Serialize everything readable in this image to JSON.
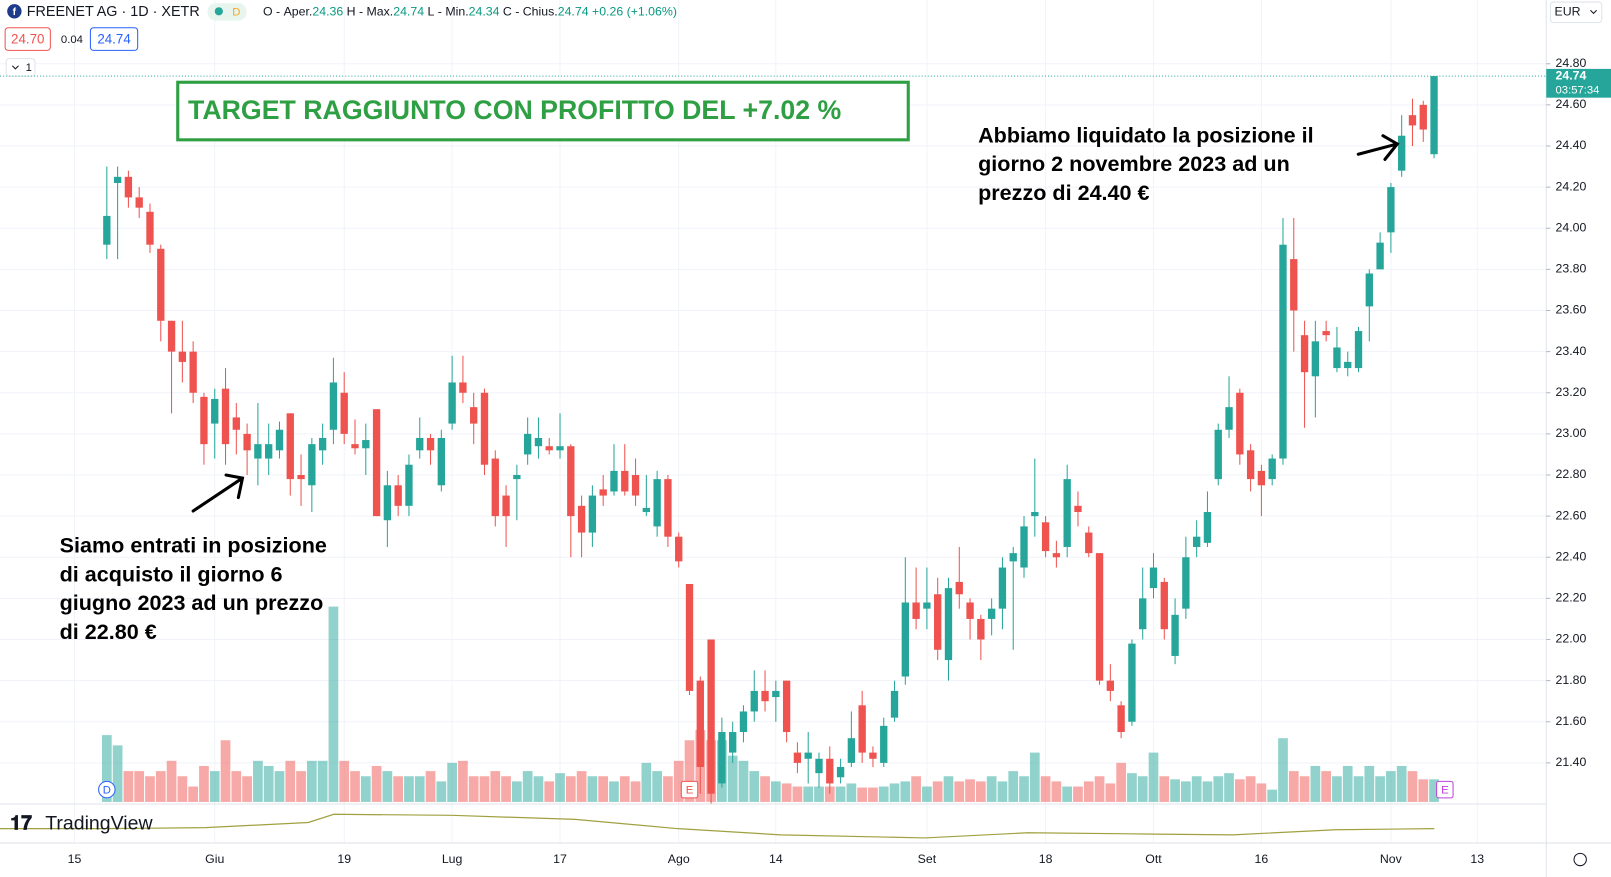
{
  "header": {
    "symbol": "FREENET AG · 1D · XETR",
    "o_key": "O",
    "o_name": "Aper.",
    "h_key": "H",
    "h_name": "Max.",
    "l_key": "L",
    "l_name": "Min.",
    "c_key": "C",
    "c_name": "Chius.",
    "change": "+0.26 (+1.06%)",
    "sell": "24.70",
    "spread": "0.04",
    "buy": "24.74",
    "interval_count": "1",
    "flag": "D",
    "currency": "EUR",
    "brand": "TradingView"
  },
  "chart_data": {
    "type": "candlestick",
    "ohlc": {
      "open": [
        23.92,
        24.22,
        24.25,
        24.15,
        24.08,
        23.9,
        23.55,
        23.4,
        23.4,
        23.18,
        23.05,
        23.22,
        23.08,
        23.0,
        22.88,
        22.88,
        22.92,
        23.1,
        22.8,
        22.75,
        22.92,
        23.02,
        23.2,
        22.95,
        22.93,
        23.12,
        22.58,
        22.75,
        22.65,
        22.92,
        22.98,
        22.75,
        23.05,
        23.25,
        23.13,
        23.2,
        22.88,
        22.7,
        22.78,
        22.9,
        22.94,
        22.94,
        22.92,
        22.94,
        22.65,
        22.52,
        22.73,
        22.72,
        22.82,
        22.8,
        22.62,
        22.55,
        22.78,
        22.5,
        22.27,
        21.8,
        22.0,
        21.3,
        21.45,
        21.55,
        21.65,
        21.75,
        21.72,
        21.8,
        21.45,
        21.42,
        21.35,
        21.42,
        21.33,
        21.4,
        21.68,
        21.45,
        21.4,
        21.62,
        21.82,
        22.18,
        22.15,
        22.22,
        21.9,
        22.28,
        22.18,
        22.1,
        22.1,
        22.15,
        22.38,
        22.35,
        22.6,
        22.57,
        22.42,
        22.45,
        22.65,
        22.52,
        22.42,
        21.8,
        21.68,
        21.6,
        22.05,
        22.25,
        22.28,
        21.92,
        22.15,
        22.45,
        22.47,
        22.78,
        23.02,
        23.2,
        22.92,
        22.82,
        22.78,
        22.88,
        23.85,
        23.48,
        23.28,
        23.5,
        23.32,
        23.32,
        23.32,
        23.62,
        23.8,
        23.98,
        24.28,
        24.55,
        24.6,
        24.36
      ],
      "high": [
        24.3,
        24.3,
        24.28,
        24.2,
        24.12,
        23.92,
        23.55,
        23.55,
        23.45,
        23.2,
        23.22,
        23.32,
        23.15,
        23.05,
        23.15,
        23.05,
        23.06,
        23.1,
        22.9,
        22.98,
        23.05,
        23.37,
        23.3,
        23.07,
        23.05,
        23.12,
        22.82,
        22.8,
        22.9,
        23.08,
        23.0,
        23.02,
        23.38,
        23.38,
        23.2,
        23.22,
        22.92,
        22.75,
        22.85,
        23.08,
        23.08,
        22.98,
        23.1,
        22.95,
        22.7,
        22.75,
        22.8,
        22.95,
        22.95,
        22.88,
        22.8,
        22.82,
        22.8,
        22.52,
        22.27,
        21.82,
        22.0,
        21.62,
        21.6,
        21.68,
        21.85,
        21.85,
        21.8,
        21.8,
        21.5,
        21.55,
        21.45,
        21.48,
        21.42,
        21.65,
        21.75,
        21.48,
        21.62,
        21.8,
        22.4,
        22.35,
        22.35,
        22.3,
        22.3,
        22.45,
        22.2,
        22.12,
        22.2,
        22.4,
        22.45,
        22.6,
        22.88,
        22.6,
        22.48,
        22.85,
        22.72,
        22.55,
        22.42,
        21.88,
        21.7,
        22.0,
        22.35,
        22.42,
        22.3,
        22.2,
        22.5,
        22.58,
        22.72,
        23.05,
        23.28,
        23.22,
        22.95,
        22.85,
        22.9,
        24.05,
        24.05,
        23.55,
        23.55,
        23.55,
        23.52,
        23.4,
        23.52,
        23.8,
        23.98,
        24.22,
        24.55,
        24.63,
        24.62,
        24.74
      ],
      "low": [
        23.85,
        23.85,
        24.1,
        24.05,
        23.88,
        23.45,
        23.1,
        23.25,
        23.15,
        22.85,
        22.88,
        22.85,
        22.9,
        22.8,
        22.75,
        22.8,
        22.88,
        22.7,
        22.65,
        22.62,
        22.85,
        22.95,
        22.95,
        22.9,
        22.8,
        22.6,
        22.45,
        22.6,
        22.6,
        22.88,
        22.85,
        22.72,
        23.02,
        23.15,
        22.95,
        22.8,
        22.55,
        22.45,
        22.58,
        22.85,
        22.88,
        22.9,
        22.88,
        22.4,
        22.4,
        22.45,
        22.65,
        22.7,
        22.7,
        22.65,
        22.6,
        22.5,
        22.45,
        22.35,
        21.73,
        21.25,
        21.2,
        21.28,
        21.4,
        21.5,
        21.6,
        21.65,
        21.6,
        21.5,
        21.35,
        21.3,
        21.28,
        21.25,
        21.3,
        21.38,
        21.4,
        21.38,
        21.38,
        21.6,
        21.78,
        22.05,
        22.05,
        21.9,
        21.8,
        22.15,
        22.0,
        21.9,
        22.02,
        22.05,
        21.95,
        22.3,
        22.5,
        22.4,
        22.35,
        22.4,
        22.55,
        22.4,
        21.78,
        21.7,
        21.52,
        21.58,
        22.0,
        22.2,
        22.0,
        21.88,
        22.1,
        22.4,
        22.45,
        22.75,
        22.98,
        22.85,
        22.72,
        22.6,
        22.75,
        22.85,
        23.4,
        23.03,
        23.08,
        23.45,
        23.3,
        23.28,
        23.3,
        23.45,
        23.88,
        23.88,
        24.25,
        24.4,
        24.42,
        24.34
      ],
      "close": [
        24.06,
        24.25,
        24.15,
        24.1,
        23.92,
        23.55,
        23.4,
        23.35,
        23.2,
        22.95,
        23.17,
        22.95,
        23.02,
        22.92,
        22.95,
        22.95,
        23.02,
        22.78,
        22.78,
        22.95,
        22.98,
        23.25,
        23.0,
        22.93,
        22.97,
        22.6,
        22.75,
        22.65,
        22.85,
        22.98,
        22.92,
        22.98,
        23.25,
        23.2,
        23.05,
        22.85,
        22.6,
        22.6,
        22.8,
        23.0,
        22.98,
        22.92,
        22.94,
        22.6,
        22.52,
        22.7,
        22.7,
        22.82,
        22.72,
        22.7,
        22.64,
        22.78,
        22.5,
        22.38,
        21.75,
        21.38,
        21.25,
        21.55,
        21.55,
        21.65,
        21.75,
        21.7,
        21.75,
        21.55,
        21.4,
        21.45,
        21.42,
        21.3,
        21.38,
        21.52,
        21.45,
        21.42,
        21.58,
        21.75,
        22.18,
        22.1,
        22.18,
        21.95,
        22.25,
        22.22,
        22.1,
        22.0,
        22.15,
        22.35,
        22.42,
        22.55,
        22.62,
        22.43,
        22.4,
        22.78,
        22.62,
        22.42,
        21.8,
        21.75,
        21.55,
        21.98,
        22.2,
        22.35,
        22.05,
        22.12,
        22.4,
        22.5,
        22.62,
        23.02,
        23.13,
        22.9,
        22.78,
        22.75,
        22.88,
        23.92,
        23.6,
        23.3,
        23.45,
        23.48,
        23.42,
        23.35,
        23.5,
        23.78,
        23.93,
        24.2,
        24.45,
        24.5,
        24.48,
        24.74
      ]
    },
    "volume": [
      65,
      55,
      30,
      30,
      25,
      30,
      40,
      25,
      15,
      35,
      30,
      60,
      30,
      25,
      40,
      35,
      30,
      40,
      30,
      40,
      40,
      190,
      40,
      30,
      25,
      35,
      30,
      25,
      25,
      25,
      30,
      20,
      38,
      40,
      25,
      25,
      30,
      25,
      20,
      30,
      25,
      20,
      28,
      25,
      30,
      25,
      25,
      20,
      25,
      20,
      38,
      30,
      25,
      40,
      60,
      70,
      60,
      60,
      45,
      40,
      30,
      25,
      20,
      18,
      15,
      15,
      15,
      15,
      15,
      18,
      14,
      14,
      15,
      18,
      20,
      25,
      15,
      20,
      25,
      20,
      22,
      20,
      25,
      20,
      30,
      25,
      48,
      25,
      20,
      15,
      15,
      20,
      25,
      18,
      38,
      28,
      25,
      48,
      25,
      22,
      20,
      25,
      20,
      25,
      28,
      22,
      25,
      18,
      12,
      62,
      30,
      25,
      35,
      30,
      25,
      35,
      25,
      35,
      25,
      30,
      35,
      30,
      22,
      22
    ],
    "xlim": [
      -9.9,
      133.4
    ],
    "xticks": [
      {
        "value": -3,
        "label": "15"
      },
      {
        "value": 10,
        "label": "Giu"
      },
      {
        "value": 22,
        "label": "19"
      },
      {
        "value": 32,
        "label": "Lug"
      },
      {
        "value": 42,
        "label": "17"
      },
      {
        "value": 53,
        "label": "Ago"
      },
      {
        "value": 62,
        "label": "14"
      },
      {
        "value": 76,
        "label": "Set"
      },
      {
        "value": 87,
        "label": "18"
      },
      {
        "value": 97,
        "label": "Ott"
      },
      {
        "value": 107,
        "label": "16"
      },
      {
        "value": 119,
        "label": "Nov"
      },
      {
        "value": 127,
        "label": "13"
      }
    ],
    "ylim": [
      21.2,
      24.86
    ],
    "yticks": [
      {
        "value": 21.4,
        "label": "21.40"
      },
      {
        "value": 21.6,
        "label": "21.60"
      },
      {
        "value": 21.8,
        "label": "21.80"
      },
      {
        "value": 22.0,
        "label": "22.00"
      },
      {
        "value": 22.2,
        "label": "22.20"
      },
      {
        "value": 22.4,
        "label": "22.40"
      },
      {
        "value": 22.6,
        "label": "22.60"
      },
      {
        "value": 22.8,
        "label": "22.80"
      },
      {
        "value": 23.0,
        "label": "23.00"
      },
      {
        "value": 23.2,
        "label": "23.20"
      },
      {
        "value": 23.4,
        "label": "23.40"
      },
      {
        "value": 23.6,
        "label": "23.60"
      },
      {
        "value": 23.8,
        "label": "23.80"
      },
      {
        "value": 24.0,
        "label": "24.00"
      },
      {
        "value": 24.2,
        "label": "24.20"
      },
      {
        "value": 24.4,
        "label": "24.40"
      },
      {
        "value": 24.6,
        "label": "24.60"
      },
      {
        "value": 24.8,
        "label": "24.80"
      }
    ],
    "grid": true,
    "up_color": "#26a69a",
    "down_color": "#ef5350",
    "last_price": 24.74,
    "countdown": "03:57:34",
    "event_markers": [
      {
        "index": 0,
        "label": "D"
      },
      {
        "index": 54,
        "label": "E"
      },
      {
        "index": 124,
        "label": "E"
      }
    ],
    "annotations": {
      "target": "TARGET RAGGIUNTO CON PROFITTO DEL +7.02 %",
      "exit": [
        "Abbiamo liquidato la posizione il",
        "giorno 2 novembre 2023 ad un",
        "prezzo di 24.40 €"
      ],
      "entry": [
        "Siamo entrati in posizione",
        "di acquisto il giorno 6",
        "giugno 2023 ad un prezzo",
        "di 22.80 €"
      ]
    }
  }
}
